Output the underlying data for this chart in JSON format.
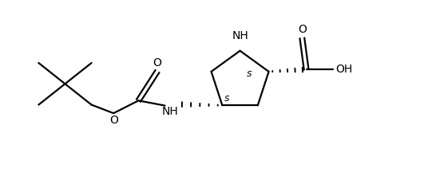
{
  "background_color": "#ffffff",
  "line_color": "#000000",
  "line_width": 1.6,
  "font_size": 10,
  "figsize": [
    5.36,
    2.31
  ],
  "dpi": 100,
  "xlim": [
    0,
    10.2
  ],
  "ylim": [
    0,
    4.31
  ]
}
